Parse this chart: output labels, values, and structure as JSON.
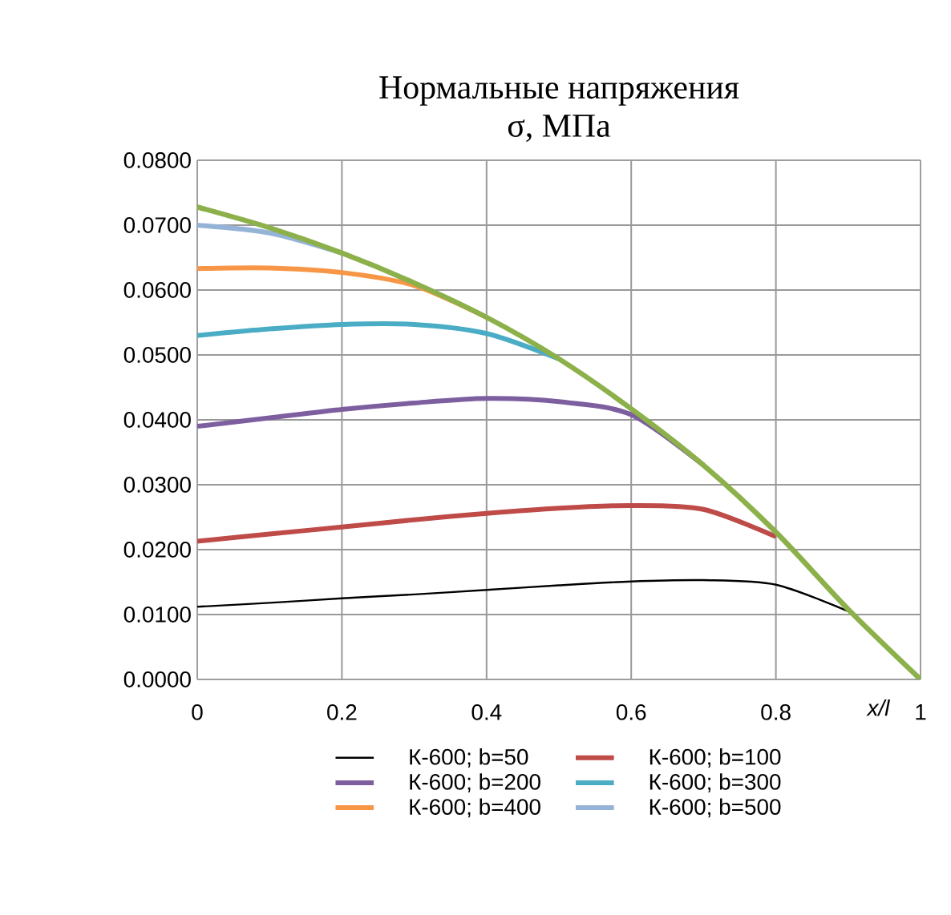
{
  "chart_data": {
    "type": "line",
    "title": "Нормальные напряжения",
    "subtitle": "σ, МПа",
    "xlabel": "x/l",
    "xlim": [
      0,
      1
    ],
    "ylim": [
      0,
      0.08
    ],
    "xticks": [
      0,
      0.2,
      0.4,
      0.6,
      0.8,
      1
    ],
    "yticks": [
      {
        "value": 0,
        "label": "0.0000"
      },
      {
        "value": 0.01,
        "label": "0.0100"
      },
      {
        "value": 0.02,
        "label": "0.0200"
      },
      {
        "value": 0.03,
        "label": "0.0300"
      },
      {
        "value": 0.04,
        "label": "0.0400"
      },
      {
        "value": 0.05,
        "label": "0.0500"
      },
      {
        "value": 0.06,
        "label": "0.0600"
      },
      {
        "value": 0.07,
        "label": "0.0700"
      },
      {
        "value": 0.08,
        "label": "0.0800"
      }
    ],
    "grid": true,
    "legend": "bottom",
    "marker": "none",
    "x": [
      0,
      0.1,
      0.2,
      0.3,
      0.4,
      0.5,
      0.6,
      0.7,
      0.8,
      0.9,
      1.0
    ],
    "series": [
      {
        "name": "К-600; b=50",
        "color": "#000000",
        "values": [
          0.0112,
          0.0118,
          0.0125,
          0.0131,
          0.0138,
          0.0145,
          0.0151,
          0.0153,
          0.0146,
          0.0105,
          null
        ]
      },
      {
        "name": "К-600; b=100",
        "color": "#be4b48",
        "values": [
          0.0213,
          0.0224,
          0.0235,
          0.0246,
          0.0256,
          0.0264,
          0.0268,
          0.0262,
          0.022,
          null,
          null
        ]
      },
      {
        "name": "К-600; b=200",
        "color": "#7d5fa0",
        "values": [
          0.039,
          0.0403,
          0.0416,
          0.0426,
          0.0433,
          0.0428,
          0.0408,
          0.033,
          null,
          null,
          null
        ]
      },
      {
        "name": "К-600; b=300",
        "color": "#4aacc5",
        "values": [
          0.053,
          0.054,
          0.0547,
          0.0547,
          0.0533,
          0.0494,
          null,
          null,
          null,
          null,
          null
        ]
      },
      {
        "name": "К-600; b=400",
        "color": "#f79646",
        "values": [
          0.0633,
          0.0634,
          0.0627,
          0.0607,
          0.0558,
          null,
          null,
          null,
          null,
          null,
          null
        ]
      },
      {
        "name": "К-600; b=500",
        "color": "#95b3d7",
        "values": [
          0.07,
          0.0688,
          0.0657,
          null,
          null,
          null,
          null,
          null,
          null,
          null,
          null
        ]
      },
      {
        "color": "#8cb04a",
        "values": [
          0.0728,
          0.0696,
          0.0657,
          0.0611,
          0.0558,
          0.0494,
          0.0417,
          0.033,
          0.0227,
          0.0108,
          0
        ]
      }
    ]
  }
}
